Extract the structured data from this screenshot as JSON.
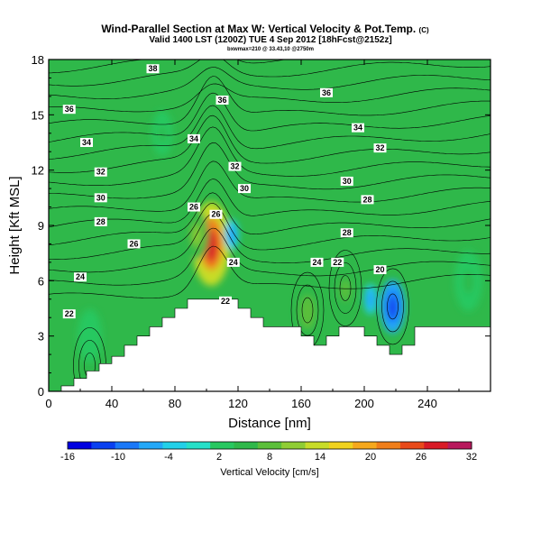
{
  "chart_data": {
    "type": "heatmap",
    "title": "Wind-Parallel Section at Max W: Vertical Velocity & Pot.Temp.",
    "title_unit": "(C)",
    "subtitle": "Valid 1400 LST (1200Z) TUE 4 Sep 2012 [18hFcst@2152z]",
    "subtitle2": "bxwmax=210 @ 33.43,10 @2750m",
    "xlabel": "Distance [nm]",
    "ylabel": "Height [Kft MSL]",
    "xlim": [
      0,
      280
    ],
    "ylim": [
      0,
      18
    ],
    "x_ticks": [
      "0",
      "40",
      "80",
      "120",
      "160",
      "200",
      "240"
    ],
    "y_ticks": [
      "0",
      "3",
      "6",
      "9",
      "12",
      "15",
      "18"
    ],
    "background_color": "#2fb84a",
    "terrain_color": "#ffffff",
    "terrain": [
      [
        0,
        0.0
      ],
      [
        8,
        0.3
      ],
      [
        16,
        0.7
      ],
      [
        24,
        1.1
      ],
      [
        32,
        1.5
      ],
      [
        40,
        1.9
      ],
      [
        48,
        2.5
      ],
      [
        56,
        3.0
      ],
      [
        64,
        3.5
      ],
      [
        72,
        4.0
      ],
      [
        80,
        4.5
      ],
      [
        88,
        5.0
      ],
      [
        96,
        5.0
      ],
      [
        104,
        5.0
      ],
      [
        112,
        5.0
      ],
      [
        120,
        4.5
      ],
      [
        128,
        4.0
      ],
      [
        136,
        3.5
      ],
      [
        144,
        3.5
      ],
      [
        152,
        3.5
      ],
      [
        160,
        3.0
      ],
      [
        168,
        2.5
      ],
      [
        176,
        3.0
      ],
      [
        184,
        3.5
      ],
      [
        192,
        3.5
      ],
      [
        200,
        3.0
      ],
      [
        208,
        2.5
      ],
      [
        216,
        2.0
      ],
      [
        224,
        2.5
      ],
      [
        232,
        3.5
      ],
      [
        240,
        3.5
      ],
      [
        256,
        3.5
      ],
      [
        272,
        3.5
      ],
      [
        280,
        3.5
      ]
    ],
    "velocity_anomalies": [
      {
        "x": 103,
        "y": 8.0,
        "w": 22,
        "value": 30
      },
      {
        "x": 94,
        "y": 8.5,
        "w": 13,
        "value": 12
      },
      {
        "x": 116,
        "y": 8.5,
        "w": 8,
        "value": -7
      },
      {
        "x": 72,
        "y": 14.0,
        "w": 12,
        "value": 6
      },
      {
        "x": 164,
        "y": 4.3,
        "w": 14,
        "value": 10
      },
      {
        "x": 188,
        "y": 5.5,
        "w": 9,
        "value": 10
      },
      {
        "x": 218,
        "y": 4.6,
        "w": 14,
        "value": -12
      },
      {
        "x": 204,
        "y": 5.0,
        "w": 8,
        "value": -6
      },
      {
        "x": 266,
        "y": 6.0,
        "w": 16,
        "value": 6
      },
      {
        "x": 26,
        "y": 3.0,
        "w": 14,
        "value": 4
      }
    ],
    "theta_contours": [
      20,
      21,
      22,
      23,
      24,
      25,
      26,
      27,
      28,
      29,
      30,
      31,
      32,
      33,
      34,
      35,
      36,
      37,
      38
    ],
    "contour_labels": [
      {
        "x": 66,
        "y": 17.5,
        "text": "38"
      },
      {
        "x": 13,
        "y": 15.3,
        "text": "36"
      },
      {
        "x": 110,
        "y": 15.8,
        "text": "36"
      },
      {
        "x": 176,
        "y": 16.2,
        "text": "36"
      },
      {
        "x": 24,
        "y": 13.5,
        "text": "34"
      },
      {
        "x": 92,
        "y": 13.7,
        "text": "34"
      },
      {
        "x": 196,
        "y": 14.3,
        "text": "34"
      },
      {
        "x": 33,
        "y": 11.9,
        "text": "32"
      },
      {
        "x": 118,
        "y": 12.2,
        "text": "32"
      },
      {
        "x": 210,
        "y": 13.2,
        "text": "32"
      },
      {
        "x": 33,
        "y": 10.5,
        "text": "30"
      },
      {
        "x": 124,
        "y": 11.0,
        "text": "30"
      },
      {
        "x": 189,
        "y": 11.4,
        "text": "30"
      },
      {
        "x": 202,
        "y": 10.4,
        "text": "28"
      },
      {
        "x": 33,
        "y": 9.2,
        "text": "28"
      },
      {
        "x": 92,
        "y": 10.0,
        "text": "26"
      },
      {
        "x": 106,
        "y": 9.6,
        "text": "26"
      },
      {
        "x": 54,
        "y": 8.0,
        "text": "26"
      },
      {
        "x": 189,
        "y": 8.6,
        "text": "28"
      },
      {
        "x": 117,
        "y": 7.0,
        "text": "24"
      },
      {
        "x": 170,
        "y": 7.0,
        "text": "24"
      },
      {
        "x": 183,
        "y": 7.0,
        "text": "22"
      },
      {
        "x": 20,
        "y": 6.2,
        "text": "24"
      },
      {
        "x": 210,
        "y": 6.6,
        "text": "20"
      },
      {
        "x": 13,
        "y": 4.2,
        "text": "22"
      },
      {
        "x": 112,
        "y": 4.9,
        "text": "22"
      }
    ],
    "colorbar": {
      "label": "Vertical Velocity [cm/s]",
      "ticks": [
        "-16",
        "-10",
        "-4",
        "2",
        "8",
        "14",
        "20",
        "26",
        "32"
      ],
      "levels": [
        -16,
        -13,
        -10,
        -7,
        -4,
        -1,
        2,
        5,
        8,
        11,
        14,
        17,
        20,
        23,
        26,
        29,
        32
      ],
      "colors": [
        "#0000e0",
        "#0a40f0",
        "#1a78f8",
        "#23a8f8",
        "#22d0e8",
        "#26e0c8",
        "#28c860",
        "#2fb84a",
        "#5bbf3a",
        "#8fcd34",
        "#c8dc28",
        "#f0d21e",
        "#f6a81c",
        "#f07e1a",
        "#e84a1a",
        "#d81a26",
        "#b8185c"
      ]
    }
  }
}
